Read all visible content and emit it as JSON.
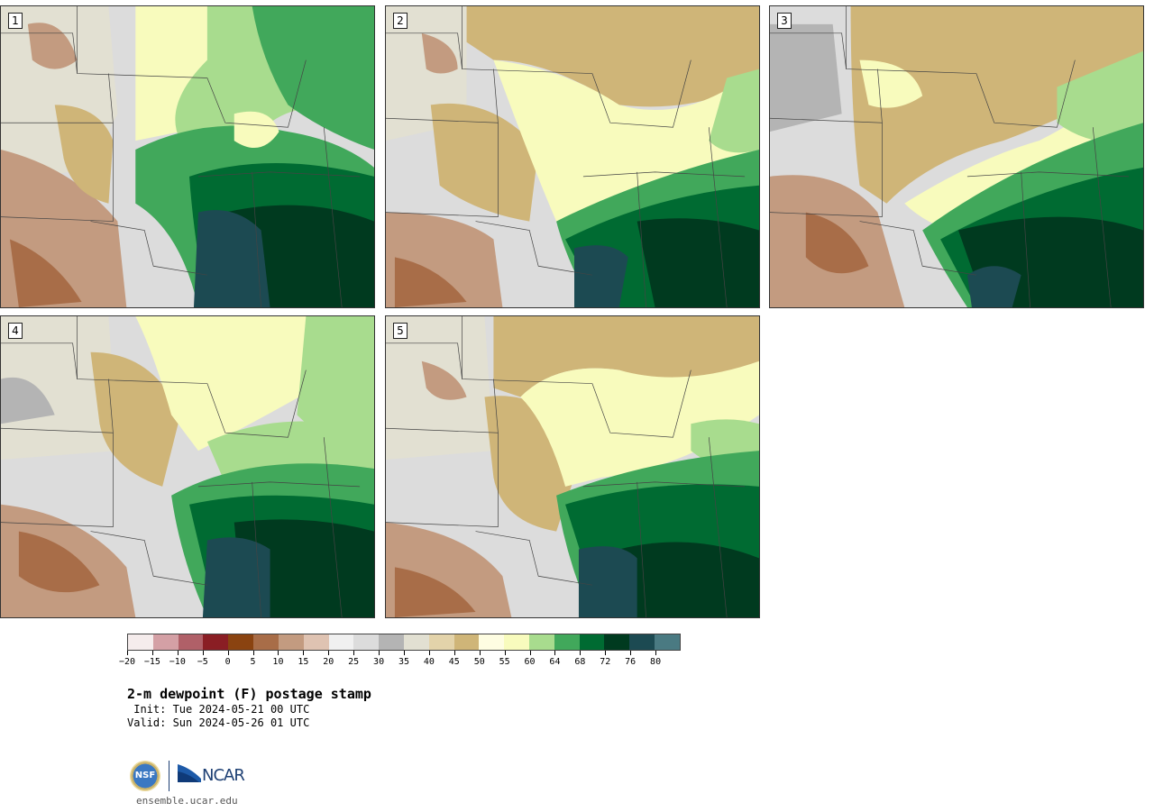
{
  "panels": [
    {
      "label": "1"
    },
    {
      "label": "2"
    },
    {
      "label": "3"
    },
    {
      "label": "4"
    },
    {
      "label": "5"
    }
  ],
  "colorbar": {
    "colors": [
      "#f5ecec",
      "#d4a0a5",
      "#b06068",
      "#8a1e24",
      "#8a4310",
      "#a86d48",
      "#c39b80",
      "#dfc3b2",
      "#f0f0f0",
      "#dcdcdc",
      "#b4b4b4",
      "#e2e0d2",
      "#e3d3aa",
      "#cfb578",
      "#fefde2",
      "#f8fbbd",
      "#a8dc8e",
      "#41a85b",
      "#006b32",
      "#003a1f",
      "#1c4a52",
      "#4a7a82"
    ],
    "tick_labels": [
      "−20",
      "−15",
      "−10",
      "−5",
      "0",
      "5",
      "10",
      "15",
      "20",
      "25",
      "30",
      "35",
      "40",
      "45",
      "50",
      "55",
      "60",
      "64",
      "68",
      "72",
      "76",
      "80"
    ]
  },
  "title": "2-m dewpoint (F) postage stamp",
  "init_text": " Init: Tue 2024-05-21 00 UTC",
  "valid_text": "Valid: Sun 2024-05-26 01 UTC",
  "logos": {
    "nsf": "NSF",
    "ncar": "NCAR"
  },
  "site": "ensemble.ucar.edu"
}
